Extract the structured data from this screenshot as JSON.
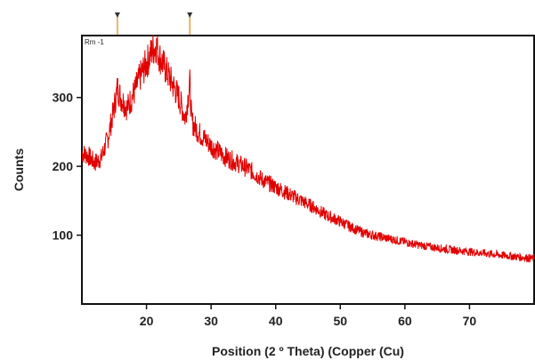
{
  "chart_data": {
    "type": "line",
    "title": "",
    "sample_label": "Rm -1",
    "xlabel": "Position (2 º Theta) (Copper (Cu)",
    "ylabel": "Counts",
    "xlim": [
      10,
      80
    ],
    "ylim": [
      0,
      390
    ],
    "x_ticks": [
      20,
      30,
      40,
      50,
      60,
      70
    ],
    "y_ticks": [
      100,
      200,
      300
    ],
    "grid": false,
    "series_color": "#e00000",
    "peak_markers": [
      15.5,
      26.7
    ],
    "marker_color": "#e8a13a",
    "series": [
      {
        "values_note_free": true,
        "x": [
          10,
          11,
          12,
          13,
          14,
          15,
          15.5,
          16,
          17,
          18,
          19,
          20,
          21,
          21.5,
          22,
          23,
          24,
          25,
          26,
          26.7,
          27,
          28,
          29,
          30,
          32,
          34,
          36,
          38,
          40,
          42,
          44,
          46,
          48,
          50,
          52,
          54,
          56,
          58,
          60,
          62,
          64,
          66,
          68,
          70,
          72,
          74,
          76,
          78,
          80
        ],
        "y": [
          220,
          215,
          205,
          212,
          240,
          285,
          315,
          300,
          285,
          305,
          330,
          350,
          370,
          375,
          360,
          340,
          320,
          300,
          270,
          320,
          265,
          250,
          240,
          230,
          215,
          205,
          195,
          180,
          170,
          160,
          150,
          140,
          128,
          120,
          110,
          102,
          98,
          94,
          90,
          86,
          83,
          80,
          78,
          76,
          74,
          72,
          70,
          68,
          66
        ]
      }
    ]
  }
}
